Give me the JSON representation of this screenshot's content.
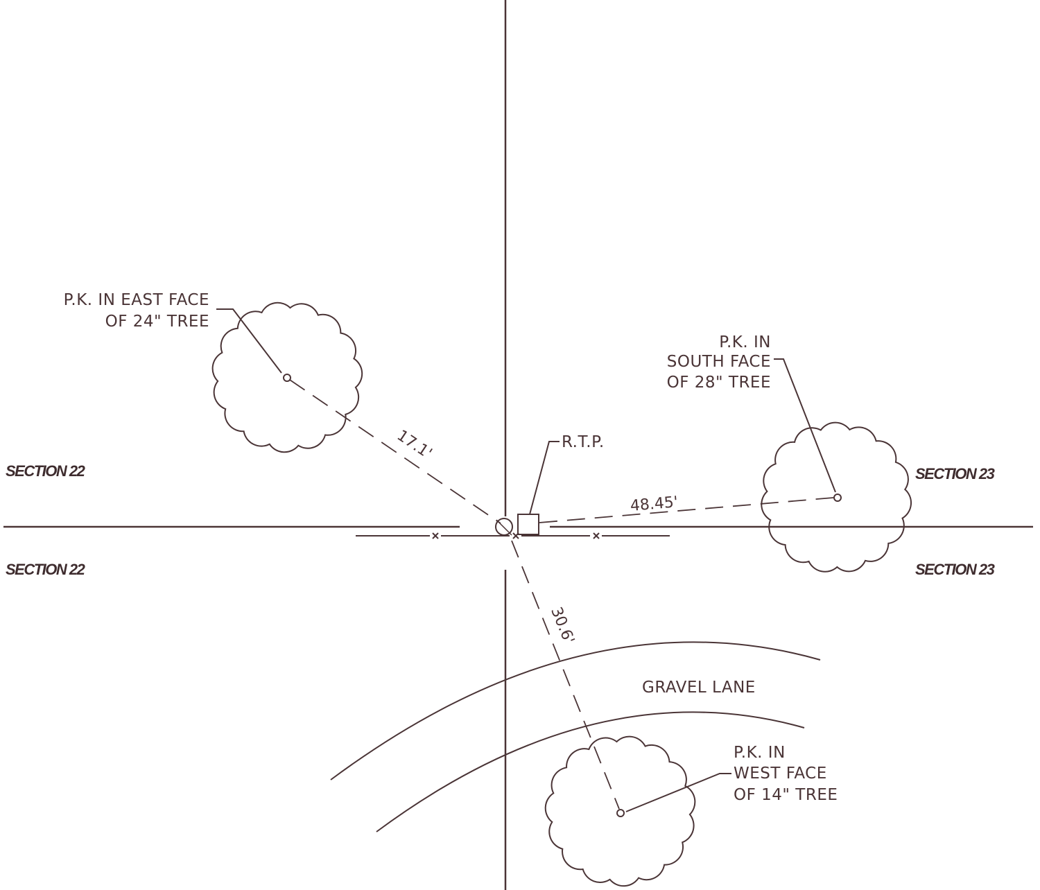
{
  "sections": {
    "nw": "SECTION 22",
    "sw": "SECTION 22",
    "ne": "SECTION 23",
    "se": "SECTION 23"
  },
  "notes": {
    "tree_24_line1": "P.K. IN EAST FACE",
    "tree_24_line2": "OF 24\" TREE",
    "tree_28_line1": "P.K. IN",
    "tree_28_line2": "SOUTH FACE",
    "tree_28_line3": "OF 28\" TREE",
    "tree_14_line1": "P.K. IN",
    "tree_14_line2": "WEST FACE",
    "tree_14_line3": "OF 14\" TREE",
    "rtp": "R.T.P.",
    "road": "GRAVEL LANE"
  },
  "distances": {
    "to_24_tree": "17.1'",
    "to_28_tree": "48.45'",
    "to_14_tree": "30.6'"
  },
  "colors": {
    "ink": "#4a3436"
  }
}
